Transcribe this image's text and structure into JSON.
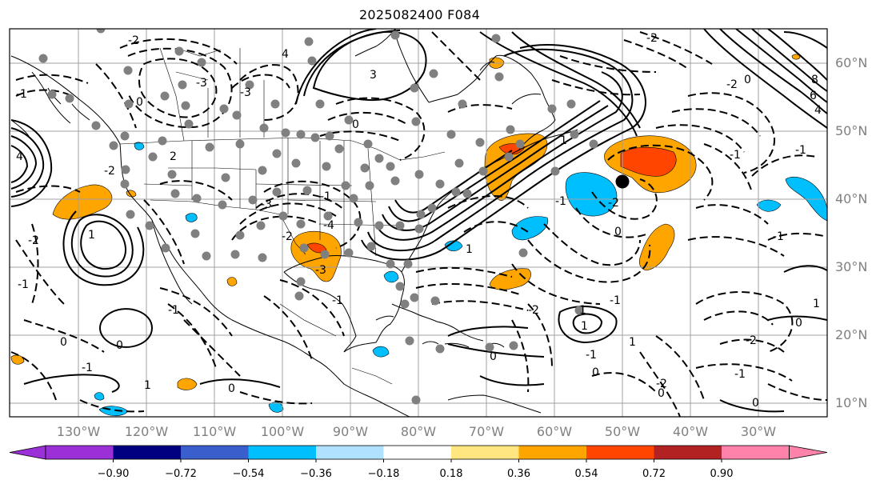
{
  "title": "2025082400 F084",
  "lat_labels": [
    "10°N",
    "20°N",
    "30°N",
    "40°N",
    "50°N",
    "60°N"
  ],
  "lon_labels": [
    "130°W",
    "120°W",
    "110°W",
    "100°W",
    "90°W",
    "80°W",
    "70°W",
    "60°W",
    "50°W",
    "40°W",
    "30°W"
  ],
  "colorbar": {
    "colors": [
      "#9b30d9",
      "#9b30d9",
      "#000080",
      "#3a5fcd",
      "#00bfff",
      "#b0e2ff",
      "#ffffff",
      "#ffe680",
      "#ffa500",
      "#ff4500",
      "#b22222",
      "#ff82ab",
      "#ff82ab"
    ],
    "tick_labels": [
      "−0.90",
      "−0.72",
      "−0.54",
      "−0.36",
      "−0.18",
      "0.18",
      "0.36",
      "0.54",
      "0.72",
      "0.90"
    ]
  },
  "contour_labels": [
    "-2",
    "-3",
    "4",
    "-3",
    "0",
    "-1",
    "4",
    "-2",
    "3",
    "0",
    "1",
    "-2",
    "-1",
    "0",
    "0",
    "-1",
    "1",
    "-1",
    "0",
    "-1",
    "2",
    "-1",
    "-2",
    "-3",
    "-4",
    "-3",
    "1",
    "0",
    "1",
    "1",
    "-1",
    "1",
    "-2",
    "-1",
    "0",
    "1",
    "0",
    "-2",
    "-1",
    "0",
    "-2",
    "0",
    "-2",
    "-1",
    "1",
    "-1",
    "0",
    "-2",
    "-1",
    "0",
    "-1",
    "8",
    "6",
    "4",
    "-2"
  ]
}
